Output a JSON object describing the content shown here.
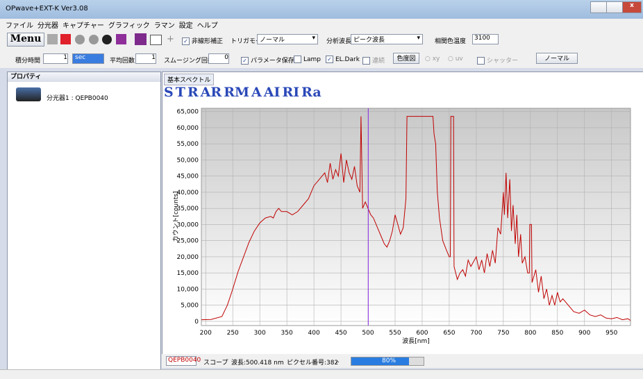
{
  "window": {
    "title": "OPwave+EXT-K Ver3.08"
  },
  "menu": [
    "ファイル",
    "分光器",
    "キャプチャー",
    "グラフィック",
    "ラマン",
    "設定",
    "ヘルプ"
  ],
  "toolbar": {
    "menu_button": "Menu",
    "nonlinear": "非線形補正",
    "trigger_label": "トリガモード",
    "trigger_value": "ノーマル",
    "wavelength_label": "分析波長",
    "wavelength_value": "ピーク波長",
    "cct_label": "相関色温度",
    "cct_value": "3100"
  },
  "params": {
    "integration_label": "積分時間",
    "integration_value": "1",
    "integration_unit": "sec",
    "average_label": "平均回数",
    "average_value": "1",
    "smoothing_label": "スムージング回数",
    "smoothing_value": "0",
    "save_params": "パラメータ保存",
    "lamp": "Lamp",
    "el_dark": "EL.Dark",
    "continuous": "連続",
    "chromaticity": "色度図",
    "xy": "xy",
    "uv": "uv",
    "shutter": "シャッター",
    "mode_button": "ノーマル"
  },
  "panel": {
    "title": "プロパティ",
    "device": "分光器1 : QEPB0040"
  },
  "tab": "基本スペクトル",
  "chart_tools": [
    "S",
    "T",
    "R",
    "AR",
    "RM",
    "A",
    "AI",
    "RI",
    "Ra"
  ],
  "chart_data": {
    "type": "line",
    "x_label": "波長[nm]",
    "y_label": "カウント[counts]",
    "color": "#c00000",
    "grid": true,
    "xlim": [
      192,
      985
    ],
    "ylim": [
      -1300,
      66000
    ],
    "xticks": [
      200,
      250,
      300,
      350,
      400,
      450,
      500,
      550,
      600,
      650,
      700,
      750,
      800,
      850,
      900,
      950
    ],
    "yticks": [
      0,
      {
        "value": 5000,
        "label": "5,000"
      },
      {
        "value": 10000,
        "label": "10,000"
      },
      {
        "value": 15000,
        "label": "15,000"
      },
      {
        "value": 20000,
        "label": "20,000"
      },
      {
        "value": 25000,
        "label": "25,000"
      },
      {
        "value": 30000,
        "label": "30,000"
      },
      {
        "value": 35000,
        "label": "35,000"
      },
      {
        "value": 40000,
        "label": "40,000"
      },
      {
        "value": 45000,
        "label": "45,000"
      },
      {
        "value": 50000,
        "label": "50,000"
      },
      {
        "value": 55000,
        "label": "55,000"
      },
      {
        "value": 60000,
        "label": "60,000"
      },
      {
        "value": 65000,
        "label": "65,000"
      }
    ],
    "cursor_x": 500.418,
    "cursor_color": "#8a2be2",
    "x": [
      192,
      210,
      230,
      240,
      250,
      260,
      270,
      280,
      290,
      300,
      310,
      320,
      325,
      330,
      335,
      340,
      350,
      360,
      370,
      380,
      390,
      400,
      410,
      420,
      425,
      430,
      435,
      440,
      445,
      450,
      455,
      460,
      465,
      470,
      475,
      480,
      485,
      487,
      490,
      495,
      500,
      505,
      510,
      515,
      520,
      525,
      530,
      535,
      540,
      545,
      550,
      555,
      560,
      565,
      570,
      572,
      620,
      622,
      625,
      628,
      632,
      638,
      645,
      650,
      652,
      653,
      658,
      659,
      665,
      670,
      675,
      680,
      685,
      690,
      700,
      705,
      710,
      715,
      720,
      725,
      730,
      735,
      740,
      745,
      750,
      752,
      755,
      758,
      762,
      765,
      768,
      772,
      775,
      778,
      782,
      785,
      790,
      795,
      798,
      799,
      802,
      803,
      810,
      815,
      820,
      825,
      830,
      835,
      840,
      845,
      850,
      855,
      860,
      870,
      880,
      890,
      900,
      910,
      920,
      930,
      940,
      950,
      960,
      970,
      980,
      985
    ],
    "values": [
      500,
      600,
      1500,
      5000,
      10000,
      15500,
      20000,
      24500,
      28000,
      30500,
      32000,
      32500,
      32000,
      34000,
      35000,
      34000,
      34000,
      33000,
      34000,
      36000,
      38000,
      42000,
      44000,
      46000,
      43000,
      49000,
      44000,
      47000,
      45000,
      52000,
      43000,
      50000,
      46000,
      44000,
      48000,
      42000,
      40000,
      63500,
      35000,
      37000,
      35000,
      33000,
      32000,
      30000,
      28000,
      26000,
      24000,
      23000,
      25000,
      28000,
      33000,
      30000,
      27000,
      29000,
      38000,
      63500,
      63500,
      58000,
      55000,
      40000,
      32000,
      25000,
      22000,
      20000,
      20000,
      63500,
      63500,
      17000,
      13000,
      15000,
      16000,
      14000,
      19000,
      17000,
      20000,
      16000,
      19000,
      15000,
      21000,
      17000,
      22000,
      18000,
      29000,
      27000,
      40000,
      33000,
      46000,
      32000,
      44000,
      28000,
      36000,
      24000,
      33000,
      20000,
      27000,
      18000,
      20000,
      15000,
      15000,
      30000,
      30000,
      12000,
      16000,
      9000,
      14000,
      7000,
      10000,
      5000,
      8000,
      5000,
      9000,
      6000,
      7000,
      5000,
      3000,
      2500,
      3500,
      2000,
      1500,
      2000,
      1000,
      800,
      1200,
      500,
      800,
      300
    ]
  },
  "status": {
    "device": "QEPB0040",
    "scope": "スコープ",
    "wavelength": "波長:500.418 nm",
    "pixel": "ピクセル番号:382",
    "dots": "..",
    "progress": {
      "value": 80,
      "label": "80%"
    }
  }
}
